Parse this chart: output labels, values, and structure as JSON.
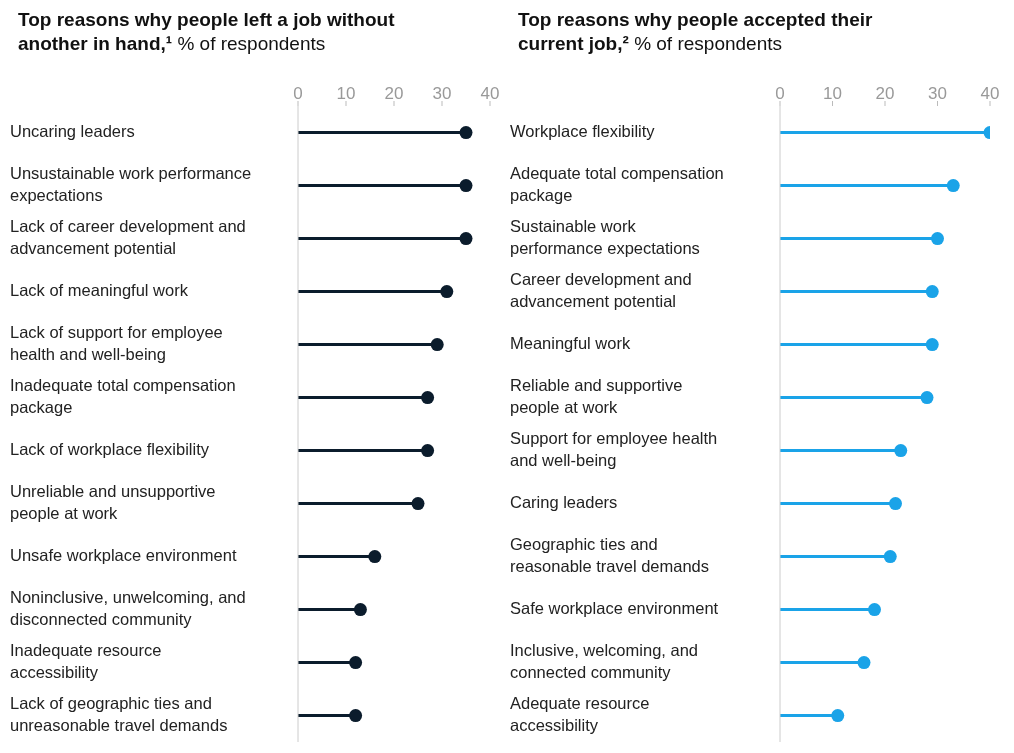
{
  "chart_data": [
    {
      "type": "lollipop",
      "title": "Top reasons why people left a job without another in hand,¹",
      "subtitle": "% of respondents",
      "orientation": "horizontal",
      "categories": [
        "Uncaring leaders",
        "Unsustainable work performance expectations",
        "Lack of career development and advancement potential",
        "Lack of meaningful work",
        "Lack of support for employee health and well-being",
        "Inadequate total compensation package",
        "Lack of workplace flexibility",
        "Unreliable and unsupportive people at work",
        "Unsafe workplace environment",
        "Noninclusive, unwelcoming, and disconnected community",
        "Inadequate resource accessibility",
        "Lack of geographic ties and unreasonable travel demands"
      ],
      "values": [
        35,
        35,
        35,
        31,
        29,
        27,
        27,
        25,
        16,
        13,
        12,
        12
      ],
      "color": "#0b1c2c",
      "xlim": [
        0,
        40
      ],
      "xticks": [
        0,
        10,
        20,
        30,
        40
      ],
      "grid": false,
      "legend": false
    },
    {
      "type": "lollipop",
      "title": "Top reasons why people accepted their current job,²",
      "subtitle": "% of respondents",
      "orientation": "horizontal",
      "categories": [
        "Workplace flexibility",
        "Adequate total compensation package",
        "Sustainable work performance expectations",
        "Career development and advancement potential",
        "Meaningful work",
        "Reliable and supportive people at work",
        "Support for employee health and well-being",
        "Caring leaders",
        "Geographic ties and reasonable travel demands",
        "Safe workplace environment",
        "Inclusive, welcoming, and connected community",
        "Adequate resource accessibility"
      ],
      "values": [
        40,
        33,
        30,
        29,
        29,
        28,
        23,
        22,
        21,
        18,
        16,
        11
      ],
      "color": "#1aa3e8",
      "xlim": [
        0,
        40
      ],
      "xticks": [
        0,
        10,
        20,
        30,
        40
      ],
      "grid": false,
      "legend": false
    }
  ]
}
